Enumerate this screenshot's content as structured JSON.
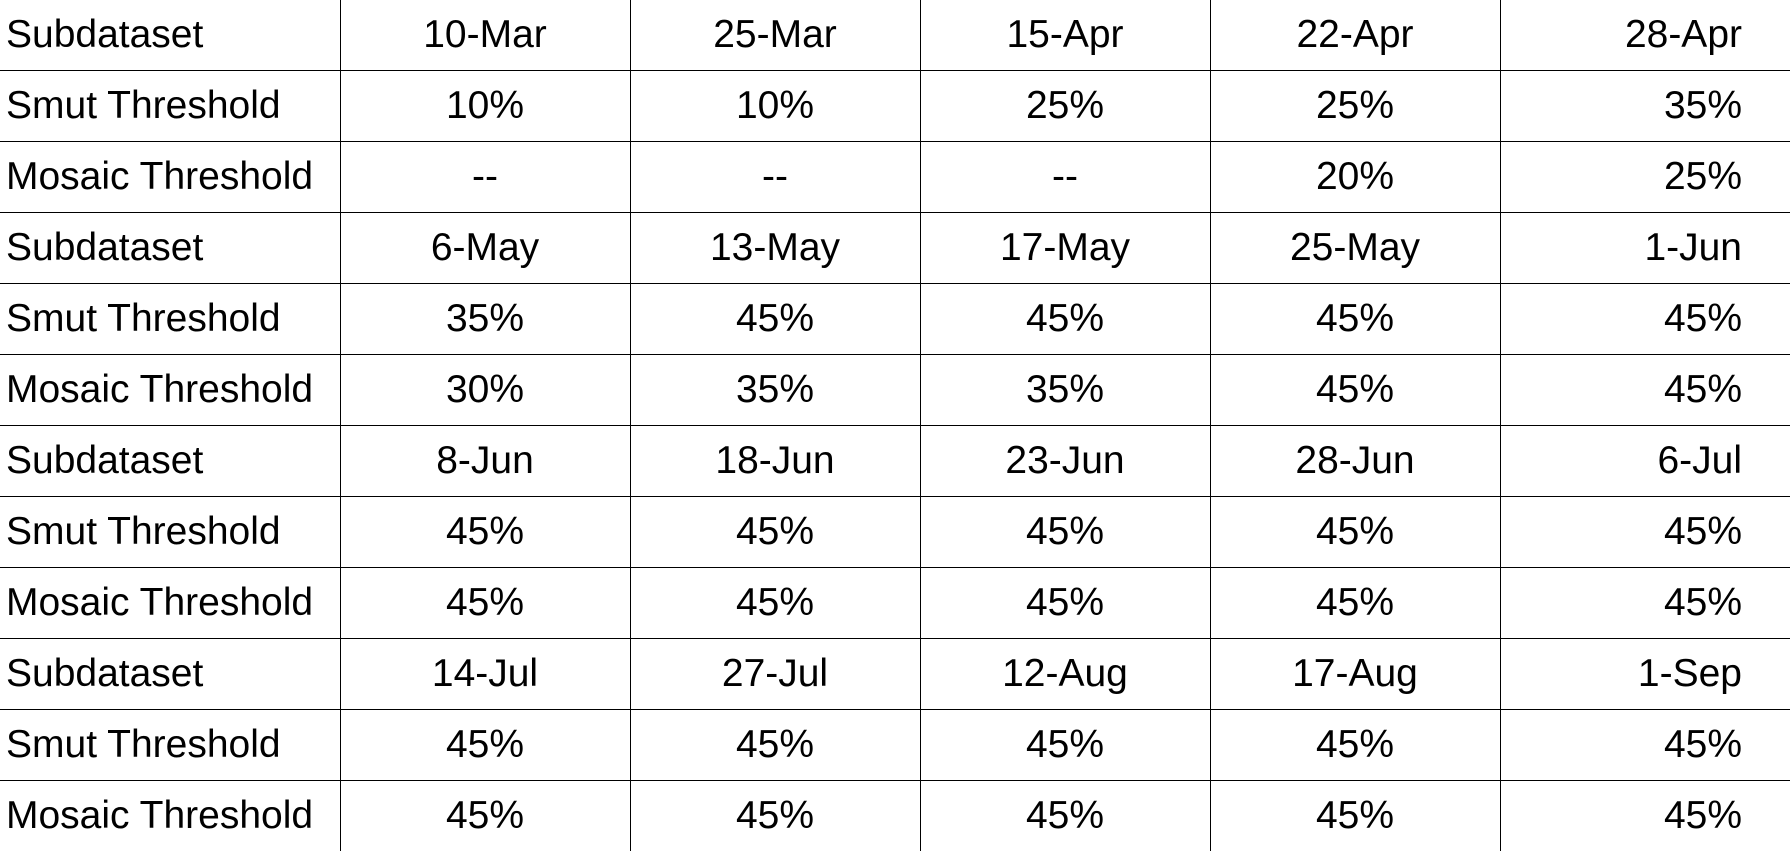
{
  "table": {
    "rows": [
      {
        "label": "Subdataset",
        "cells": [
          "10-Mar",
          "25-Mar",
          "15-Apr",
          "22-Apr",
          "28-Apr"
        ]
      },
      {
        "label": "Smut Threshold",
        "cells": [
          "10%",
          "10%",
          "25%",
          "25%",
          "35%"
        ]
      },
      {
        "label": "Mosaic Threshold",
        "cells": [
          "--",
          "--",
          "--",
          "20%",
          "25%"
        ]
      },
      {
        "label": "Subdataset",
        "cells": [
          "6-May",
          "13-May",
          "17-May",
          "25-May",
          "1-Jun"
        ]
      },
      {
        "label": "Smut Threshold",
        "cells": [
          "35%",
          "45%",
          "45%",
          "45%",
          "45%"
        ]
      },
      {
        "label": "Mosaic Threshold",
        "cells": [
          "30%",
          "35%",
          "35%",
          "45%",
          "45%"
        ]
      },
      {
        "label": "Subdataset",
        "cells": [
          "8-Jun",
          "18-Jun",
          "23-Jun",
          "28-Jun",
          "6-Jul"
        ]
      },
      {
        "label": "Smut Threshold",
        "cells": [
          "45%",
          "45%",
          "45%",
          "45%",
          "45%"
        ]
      },
      {
        "label": "Mosaic Threshold",
        "cells": [
          "45%",
          "45%",
          "45%",
          "45%",
          "45%"
        ]
      },
      {
        "label": "Subdataset",
        "cells": [
          "14-Jul",
          "27-Jul",
          "12-Aug",
          "17-Aug",
          "1-Sep"
        ]
      },
      {
        "label": "Smut Threshold",
        "cells": [
          "45%",
          "45%",
          "45%",
          "45%",
          "45%"
        ]
      },
      {
        "label": "Mosaic Threshold",
        "cells": [
          "45%",
          "45%",
          "45%",
          "45%",
          "45%"
        ]
      }
    ]
  }
}
